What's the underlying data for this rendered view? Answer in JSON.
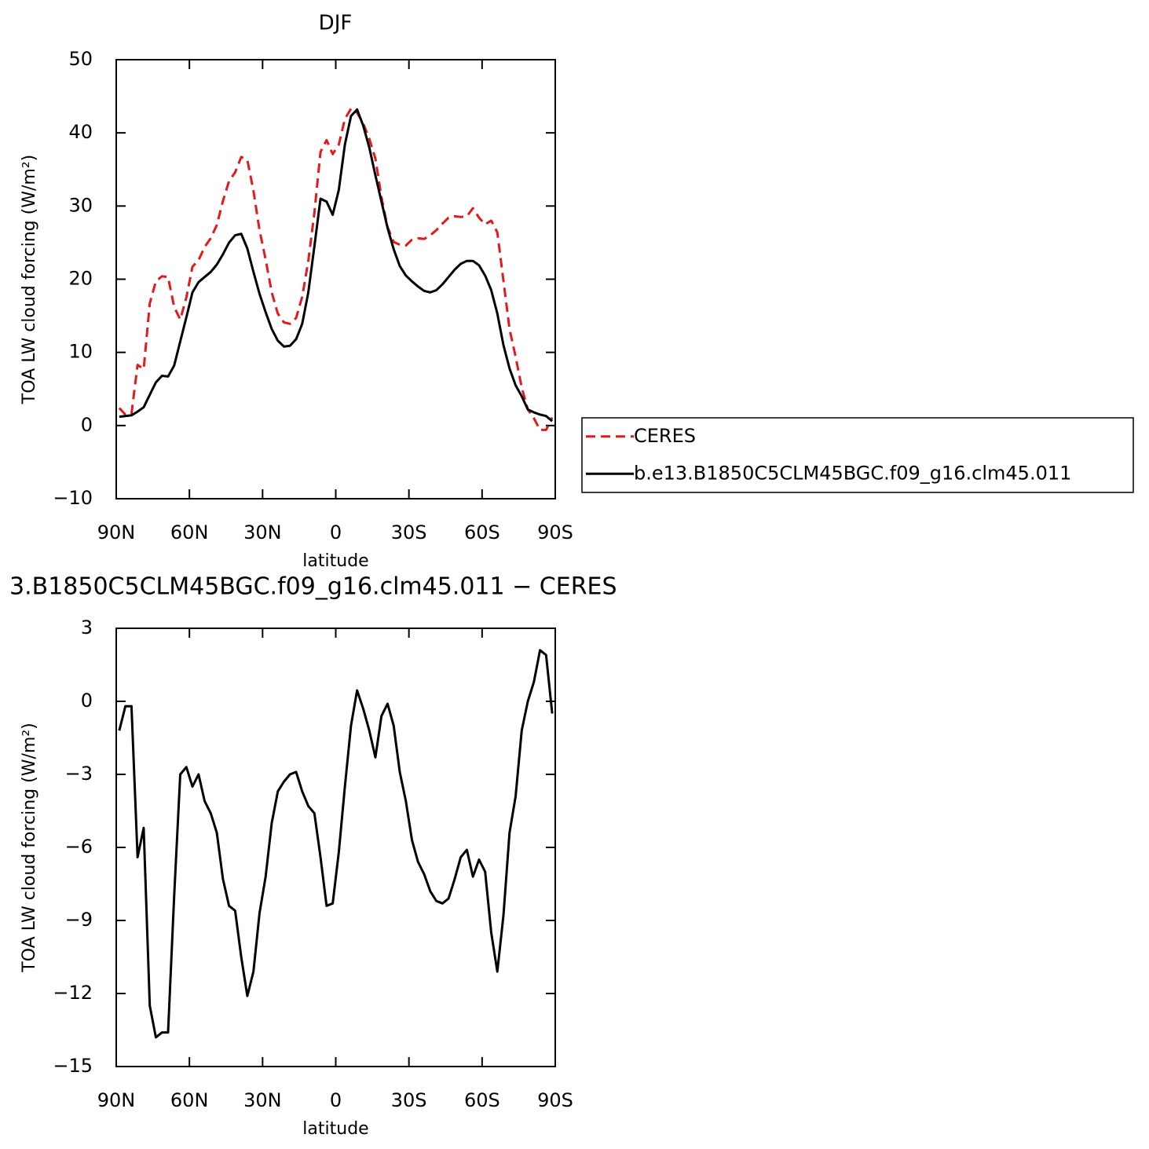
{
  "chart_data": [
    {
      "type": "line",
      "title": "DJF",
      "xlabel": "latitude",
      "ylabel": "TOA LW cloud forcing (W/m²)",
      "x": [
        88.75,
        86.25,
        83.75,
        81.25,
        78.75,
        76.25,
        73.75,
        71.25,
        68.75,
        66.25,
        63.75,
        61.25,
        58.75,
        56.25,
        53.75,
        51.25,
        48.75,
        46.25,
        43.75,
        41.25,
        38.75,
        36.25,
        33.75,
        31.25,
        28.75,
        26.25,
        23.75,
        21.25,
        18.75,
        16.25,
        13.75,
        11.25,
        8.75,
        6.25,
        3.75,
        1.25,
        -1.25,
        -3.75,
        -6.25,
        -8.75,
        -11.25,
        -13.75,
        -16.25,
        -18.75,
        -21.25,
        -23.75,
        -26.25,
        -28.75,
        -31.25,
        -33.75,
        -36.25,
        -38.75,
        -41.25,
        -43.75,
        -46.25,
        -48.75,
        -51.25,
        -53.75,
        -56.25,
        -58.75,
        -61.25,
        -63.75,
        -66.25,
        -68.75,
        -71.25,
        -73.75,
        -76.25,
        -78.75,
        -81.25,
        -83.75,
        -86.25,
        -88.75
      ],
      "xlim": [
        90,
        -90
      ],
      "xticks": [
        {
          "value": 90,
          "label": "90N"
        },
        {
          "value": 60,
          "label": "60N"
        },
        {
          "value": 30,
          "label": "30N"
        },
        0,
        {
          "value": -30,
          "label": "30S"
        },
        {
          "value": -60,
          "label": "60S"
        },
        {
          "value": -90,
          "label": "90S"
        }
      ],
      "ylim": [
        -10,
        50
      ],
      "yticks": [
        {
          "value": -10,
          "label": "−10"
        },
        0,
        10,
        20,
        30,
        40,
        50
      ],
      "legend": "right",
      "series": [
        {
          "name": "CERES",
          "color": "#e31a1c",
          "style": "dashed",
          "values": [
            2.4,
            1.5,
            1.6,
            8.3,
            7.7,
            16.7,
            19.7,
            20.4,
            20.3,
            16.2,
            14.5,
            17.5,
            21.7,
            22.6,
            24.4,
            25.6,
            27.4,
            30.7,
            33.4,
            34.6,
            36.7,
            36.3,
            32.1,
            26.7,
            22.7,
            18.2,
            15.3,
            14.1,
            13.9,
            14.7,
            17.6,
            22.5,
            29.1,
            37.4,
            39.0,
            37.1,
            38.4,
            41.9,
            43.3,
            42.75,
            41.3,
            39.2,
            36.5,
            31.2,
            27.1,
            25.1,
            24.7,
            24.6,
            25.4,
            25.6,
            25.5,
            26.0,
            26.7,
            27.6,
            28.4,
            28.6,
            28.5,
            28.6,
            29.7,
            28.4,
            27.5,
            28.0,
            26.4,
            19.8,
            13.2,
            9.4,
            5.2,
            2.2,
            1.0,
            -0.6,
            -0.6,
            1.1
          ]
        },
        {
          "name": "b.e13.B1850C5CLM45BGC.f09_g16.clm45.011",
          "color": "#000000",
          "style": "solid",
          "values": [
            1.2,
            1.3,
            1.4,
            1.9,
            2.5,
            4.2,
            5.9,
            6.8,
            6.7,
            8.2,
            11.5,
            14.8,
            18.2,
            19.6,
            20.3,
            21.0,
            22.0,
            23.4,
            25.0,
            26.0,
            26.2,
            24.2,
            21.0,
            18.0,
            15.5,
            13.2,
            11.6,
            10.8,
            10.9,
            11.8,
            13.9,
            18.2,
            24.5,
            31.0,
            30.6,
            28.8,
            32.2,
            38.4,
            42.3,
            43.2,
            41.0,
            38.0,
            34.2,
            30.6,
            27.0,
            24.1,
            21.8,
            20.5,
            19.7,
            19.0,
            18.4,
            18.2,
            18.5,
            19.3,
            20.3,
            21.3,
            22.1,
            22.5,
            22.5,
            21.9,
            20.5,
            18.5,
            15.3,
            11.0,
            7.8,
            5.5,
            4.0,
            2.2,
            1.8,
            1.5,
            1.3,
            0.6
          ]
        }
      ]
    },
    {
      "type": "line",
      "title": "3.B1850C5CLM45BGC.f09_g16.clm45.011 − CERES",
      "xlabel": "latitude",
      "ylabel": "TOA LW cloud forcing (W/m²)",
      "x": [
        88.75,
        86.25,
        83.75,
        81.25,
        78.75,
        76.25,
        73.75,
        71.25,
        68.75,
        66.25,
        63.75,
        61.25,
        58.75,
        56.25,
        53.75,
        51.25,
        48.75,
        46.25,
        43.75,
        41.25,
        38.75,
        36.25,
        33.75,
        31.25,
        28.75,
        26.25,
        23.75,
        21.25,
        18.75,
        16.25,
        13.75,
        11.25,
        8.75,
        6.25,
        3.75,
        1.25,
        -1.25,
        -3.75,
        -6.25,
        -8.75,
        -11.25,
        -13.75,
        -16.25,
        -18.75,
        -21.25,
        -23.75,
        -26.25,
        -28.75,
        -31.25,
        -33.75,
        -36.25,
        -38.75,
        -41.25,
        -43.75,
        -46.25,
        -48.75,
        -51.25,
        -53.75,
        -56.25,
        -58.75,
        -61.25,
        -63.75,
        -66.25,
        -68.75,
        -71.25,
        -73.75,
        -76.25,
        -78.75,
        -81.25,
        -83.75,
        -86.25,
        -88.75
      ],
      "xlim": [
        90,
        -90
      ],
      "xticks": [
        {
          "value": 90,
          "label": "90N"
        },
        {
          "value": 60,
          "label": "60N"
        },
        {
          "value": 30,
          "label": "30N"
        },
        0,
        {
          "value": -30,
          "label": "30S"
        },
        {
          "value": -60,
          "label": "60S"
        },
        {
          "value": -90,
          "label": "90S"
        }
      ],
      "ylim": [
        -15,
        3
      ],
      "yticks": [
        {
          "value": -15,
          "label": "−15"
        },
        {
          "value": -12,
          "label": "−12"
        },
        {
          "value": -9,
          "label": "−9"
        },
        {
          "value": -6,
          "label": "−6"
        },
        {
          "value": -3,
          "label": "−3"
        },
        0,
        3
      ],
      "series": [
        {
          "color": "#000000",
          "style": "solid",
          "values": [
            -1.2,
            -0.2,
            -0.2,
            -6.4,
            -5.2,
            -12.5,
            -13.8,
            -13.6,
            -13.6,
            -8.0,
            -3.0,
            -2.7,
            -3.5,
            -3.0,
            -4.1,
            -4.6,
            -5.4,
            -7.3,
            -8.4,
            -8.6,
            -10.5,
            -12.1,
            -11.1,
            -8.7,
            -7.2,
            -5.0,
            -3.7,
            -3.3,
            -3.0,
            -2.9,
            -3.7,
            -4.3,
            -4.6,
            -6.4,
            -8.4,
            -8.3,
            -6.2,
            -3.5,
            -1.0,
            0.45,
            -0.3,
            -1.2,
            -2.3,
            -0.6,
            -0.1,
            -1.0,
            -2.9,
            -4.1,
            -5.7,
            -6.6,
            -7.1,
            -7.8,
            -8.2,
            -8.3,
            -8.1,
            -7.3,
            -6.4,
            -6.1,
            -7.2,
            -6.5,
            -7.0,
            -9.5,
            -11.1,
            -8.8,
            -5.4,
            -3.9,
            -1.2,
            0.0,
            0.8,
            2.1,
            1.9,
            -0.5
          ]
        }
      ]
    }
  ]
}
